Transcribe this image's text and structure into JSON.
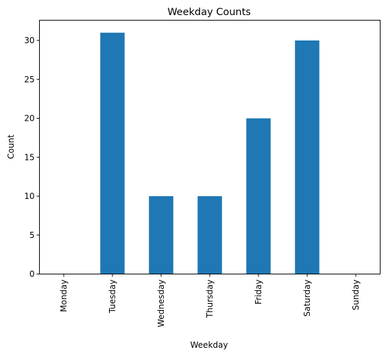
{
  "chart_data": {
    "type": "bar",
    "title": "Weekday Counts",
    "xlabel": "Weekday",
    "ylabel": "Count",
    "categories": [
      "Monday",
      "Tuesday",
      "Wednesday",
      "Thursday",
      "Friday",
      "Saturday",
      "Sunday"
    ],
    "values": [
      0,
      31,
      10,
      10,
      20,
      30,
      0
    ],
    "ylim": [
      0,
      32.6
    ],
    "yticks": [
      0,
      5,
      10,
      15,
      20,
      25,
      30
    ],
    "bar_color": "#1f77b4",
    "grid": false,
    "legend": "none"
  }
}
